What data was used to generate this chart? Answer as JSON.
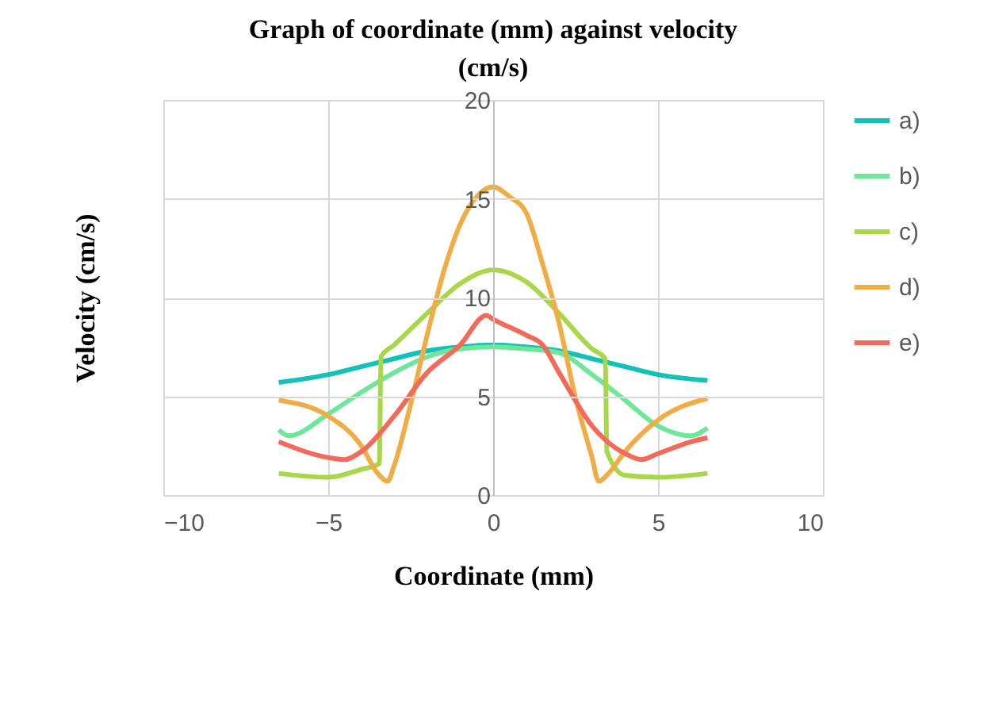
{
  "chart_data": {
    "type": "line",
    "title": "Graph of coordinate (mm) against velocity (cm/s)",
    "xlabel": "Coordinate (mm)",
    "ylabel": "Velocity (cm/s)",
    "xlim": [
      -10,
      10
    ],
    "xticks": [
      -10,
      -5,
      0,
      5,
      10
    ],
    "ylim": [
      0,
      20
    ],
    "yticks": [
      0,
      5,
      10,
      15,
      20
    ],
    "grid": true,
    "legend": "right",
    "marker": "none",
    "line_style": "solid",
    "series": [
      {
        "name": "a)",
        "color": "#12c2b8",
        "x": [
          -6.5,
          -5,
          -4,
          -3,
          -2,
          -1,
          0,
          1,
          2,
          3,
          4,
          5,
          6.5
        ],
        "values": [
          5.7,
          6.1,
          6.5,
          6.9,
          7.3,
          7.5,
          7.6,
          7.5,
          7.3,
          6.9,
          6.5,
          6.1,
          5.8
        ]
      },
      {
        "name": "b)",
        "color": "#6ee79a",
        "x": [
          -6.5,
          -6.2,
          -5,
          -4,
          -3,
          -2,
          -1,
          0,
          1,
          2,
          3,
          4,
          5,
          6,
          6.5
        ],
        "values": [
          3.3,
          3.0,
          4.1,
          5.2,
          6.2,
          7.0,
          7.4,
          7.5,
          7.4,
          7.2,
          6.1,
          4.8,
          3.5,
          3.0,
          3.4
        ]
      },
      {
        "name": "c)",
        "color": "#a8d84a",
        "x": [
          -6.5,
          -5,
          -4,
          -3.45,
          -3.4,
          -3,
          -2,
          -1,
          0,
          1,
          2,
          3,
          3.4,
          3.45,
          4,
          5,
          6.5
        ],
        "values": [
          1.1,
          0.9,
          1.3,
          1.6,
          7.0,
          7.6,
          9.2,
          10.7,
          11.4,
          10.8,
          9.2,
          7.4,
          6.9,
          2.2,
          1.0,
          0.9,
          1.1
        ]
      },
      {
        "name": "d)",
        "color": "#f0ac45",
        "x": [
          -6.5,
          -5,
          -4,
          -3.5,
          -3.2,
          -3,
          -2.5,
          -2,
          -1.5,
          -1,
          -0.5,
          0,
          0.5,
          1,
          1.5,
          2,
          2.5,
          3,
          3.2,
          3.5,
          4,
          5,
          6.5
        ],
        "values": [
          4.8,
          4.0,
          2.5,
          1.1,
          0.7,
          1.5,
          4.6,
          8.1,
          11.3,
          13.7,
          15.1,
          15.6,
          15.1,
          14.3,
          11.7,
          8.7,
          4.9,
          1.9,
          0.7,
          1.1,
          2.2,
          3.8,
          4.9
        ]
      },
      {
        "name": "e)",
        "color": "#f26b5a",
        "x": [
          -6.5,
          -5,
          -4.5,
          -4,
          -3,
          -2,
          -1,
          -0.2,
          0,
          1,
          1.5,
          2,
          3,
          4,
          4.5,
          5,
          6,
          6.5
        ],
        "values": [
          2.7,
          1.9,
          1.8,
          2.2,
          4.0,
          6.2,
          7.6,
          9.1,
          8.9,
          8.1,
          7.6,
          6.2,
          3.5,
          2.1,
          1.8,
          2.1,
          2.7,
          2.9
        ]
      }
    ]
  }
}
